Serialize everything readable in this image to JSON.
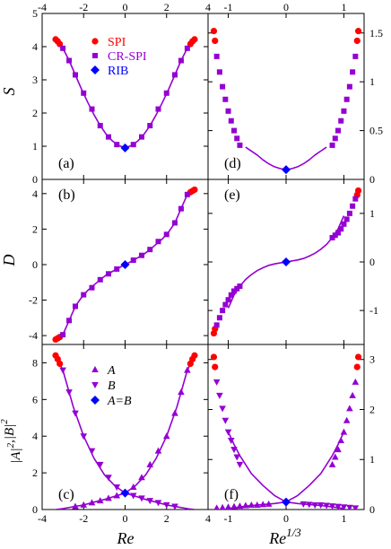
{
  "colors": {
    "spi": "#ff0000",
    "crspi": "#9400d3",
    "rib": "#0000ff",
    "line": "#9400d3",
    "axis": "#000000"
  },
  "legend_top": [
    {
      "key": "spi",
      "label": "SPI",
      "marker": "circle",
      "color": "#ff0000"
    },
    {
      "key": "crspi",
      "label": "CR-SPI",
      "marker": "square",
      "color": "#9400d3"
    },
    {
      "key": "rib",
      "label": "RIB",
      "marker": "diamond",
      "color": "#0000ff"
    }
  ],
  "legend_bottom": [
    {
      "key": "A",
      "label": "A",
      "marker": "triangle-up",
      "color": "#9400d3"
    },
    {
      "key": "B",
      "label": "B",
      "marker": "triangle-down",
      "color": "#9400d3"
    },
    {
      "key": "AB",
      "label": "A=B",
      "marker": "diamond",
      "color": "#0000ff"
    }
  ],
  "left_xlabel": "Re",
  "right_xlabel": "Re",
  "right_xlabel_sup": "1/3",
  "chart_data": [
    {
      "panel": "a",
      "type": "scatter",
      "label": "(a)",
      "ylabel": "S",
      "xlim": [
        -4,
        4
      ],
      "ylim": [
        0,
        5
      ],
      "xticks": [
        -4,
        -2,
        0,
        2,
        4
      ],
      "yticks": [
        0,
        1,
        2,
        3,
        4,
        5
      ],
      "curves": [
        {
          "name": "S",
          "x": [
            -3.0,
            -2.7,
            -2.4,
            -2.1,
            -1.8,
            -1.5,
            -1.2,
            -0.9,
            -0.6,
            -0.3,
            0.0,
            0.3,
            0.6,
            0.9,
            1.2,
            1.5,
            1.8,
            2.1,
            2.4,
            2.7,
            3.0,
            3.2,
            3.35
          ],
          "y": [
            3.95,
            3.58,
            3.15,
            2.72,
            2.32,
            1.95,
            1.62,
            1.35,
            1.15,
            1.02,
            0.95,
            1.02,
            1.15,
            1.35,
            1.62,
            1.95,
            2.32,
            2.72,
            3.15,
            3.58,
            3.95,
            4.1,
            4.22
          ]
        }
      ],
      "points": [
        {
          "kind": "spi",
          "x": [
            -3.35,
            -3.25,
            -3.15,
            3.15,
            3.25,
            3.35
          ],
          "y": [
            4.22,
            4.16,
            4.08,
            4.08,
            4.16,
            4.22
          ]
        },
        {
          "kind": "crspi",
          "x": [
            -3.0,
            -2.7,
            -2.4,
            -2.0,
            -1.6,
            -1.2,
            -0.8,
            -0.4,
            0.4,
            0.8,
            1.2,
            1.6,
            2.0,
            2.4,
            2.7,
            3.0
          ],
          "y": [
            3.95,
            3.58,
            3.15,
            2.6,
            2.12,
            1.62,
            1.28,
            1.05,
            1.05,
            1.28,
            1.62,
            2.12,
            2.6,
            3.15,
            3.58,
            3.95
          ]
        },
        {
          "kind": "rib",
          "x": [
            0.0
          ],
          "y": [
            0.95
          ]
        }
      ]
    },
    {
      "panel": "b",
      "type": "scatter",
      "label": "(b)",
      "ylabel": "D",
      "xlim": [
        -4,
        4
      ],
      "ylim": [
        -4.5,
        4.8
      ],
      "xticks": [
        -4,
        -2,
        0,
        2,
        4
      ],
      "yticks": [
        -4,
        -2,
        0,
        2,
        4
      ],
      "curves": [
        {
          "name": "D",
          "x": [
            -3.35,
            -3.0,
            -2.7,
            -2.4,
            -2.1,
            -1.8,
            -1.5,
            -1.2,
            -0.9,
            -0.6,
            -0.3,
            0.0,
            0.3,
            0.6,
            0.9,
            1.2,
            1.5,
            1.8,
            2.1,
            2.4,
            2.7,
            3.0,
            3.35
          ],
          "y": [
            -4.2,
            -3.95,
            -3.15,
            -2.35,
            -1.85,
            -1.45,
            -1.15,
            -0.85,
            -0.58,
            -0.38,
            -0.18,
            0.0,
            0.18,
            0.38,
            0.58,
            0.85,
            1.15,
            1.45,
            1.85,
            2.35,
            3.15,
            3.95,
            4.2
          ]
        }
      ],
      "points": [
        {
          "kind": "spi",
          "x": [
            -3.35,
            -3.25,
            -3.15,
            3.15,
            3.25,
            3.35
          ],
          "y": [
            -4.22,
            -4.15,
            -4.08,
            4.08,
            4.15,
            4.22
          ]
        },
        {
          "kind": "crspi",
          "x": [
            -3.0,
            -2.7,
            -2.4,
            -2.0,
            -1.6,
            -1.2,
            -0.8,
            -0.4,
            0.4,
            0.8,
            1.2,
            1.6,
            2.0,
            2.4,
            2.7,
            3.0
          ],
          "y": [
            -3.95,
            -3.15,
            -2.35,
            -1.7,
            -1.3,
            -0.85,
            -0.52,
            -0.25,
            0.25,
            0.52,
            0.85,
            1.3,
            1.7,
            2.35,
            3.15,
            3.95
          ]
        },
        {
          "kind": "rib",
          "x": [
            0.0
          ],
          "y": [
            0.0
          ]
        }
      ]
    },
    {
      "panel": "c",
      "type": "scatter",
      "label": "(c)",
      "ylabel": "|A|^2,|B|^2",
      "xlim": [
        -4,
        4
      ],
      "ylim": [
        0,
        9
      ],
      "xticks": [
        -4,
        -2,
        0,
        2,
        4
      ],
      "yticks": [
        0,
        2,
        4,
        6,
        8
      ],
      "curves": [
        {
          "name": "A",
          "x": [
            -3.35,
            -3.0,
            -2.5,
            -2.0,
            -1.5,
            -1.0,
            -0.5,
            0.0,
            0.5,
            1.0,
            1.5,
            2.0,
            2.5,
            3.0,
            3.35
          ],
          "y": [
            0.0,
            0.05,
            0.15,
            0.25,
            0.4,
            0.55,
            0.72,
            0.9,
            1.3,
            1.9,
            2.8,
            4.0,
            5.6,
            7.6,
            8.4
          ]
        },
        {
          "name": "B",
          "x": [
            -3.35,
            -3.0,
            -2.5,
            -2.0,
            -1.5,
            -1.0,
            -0.5,
            0.0,
            0.5,
            1.0,
            1.5,
            2.0,
            2.5,
            3.0,
            3.35
          ],
          "y": [
            8.4,
            7.6,
            5.6,
            4.0,
            2.8,
            1.9,
            1.3,
            0.9,
            0.72,
            0.55,
            0.4,
            0.25,
            0.15,
            0.05,
            0.0
          ]
        }
      ],
      "points": [
        {
          "kind": "spi",
          "x": [
            -3.35,
            -3.25,
            -3.15,
            3.15,
            3.25,
            3.35
          ],
          "y": [
            8.4,
            8.2,
            7.95,
            7.95,
            8.2,
            8.4
          ]
        },
        {
          "kind": "triangle-up",
          "x": [
            -2.4,
            -2.0,
            -1.6,
            -1.2,
            -0.8,
            -0.4,
            0.4,
            0.8,
            1.2,
            1.6,
            2.0,
            2.4,
            2.7,
            3.0
          ],
          "y": [
            0.17,
            0.25,
            0.37,
            0.48,
            0.62,
            0.76,
            1.22,
            1.75,
            2.45,
            3.2,
            4.0,
            5.25,
            6.4,
            7.6
          ]
        },
        {
          "kind": "triangle-down",
          "x": [
            -3.0,
            -2.7,
            -2.4,
            -2.0,
            -1.6,
            -1.2,
            -0.8,
            -0.4,
            0.4,
            0.8,
            1.2,
            1.6,
            2.0,
            2.4
          ],
          "y": [
            7.6,
            6.4,
            5.25,
            4.0,
            3.2,
            2.45,
            1.75,
            1.22,
            0.76,
            0.62,
            0.48,
            0.37,
            0.25,
            0.17
          ]
        },
        {
          "kind": "rib",
          "x": [
            0.0
          ],
          "y": [
            0.9
          ]
        }
      ]
    },
    {
      "panel": "d",
      "type": "scatter",
      "label": "(d)",
      "xlim": [
        -1.35,
        1.35
      ],
      "ylim": [
        0,
        1.7
      ],
      "xticks": [
        -1,
        0,
        1
      ],
      "yticks": [
        0,
        0.5,
        1,
        1.5
      ],
      "curves": [
        {
          "name": "S",
          "x": [
            -0.7,
            -0.6,
            -0.5,
            -0.4,
            -0.3,
            -0.2,
            -0.1,
            0.0,
            0.1,
            0.2,
            0.3,
            0.4,
            0.5,
            0.6,
            0.7
          ],
          "y": [
            0.33,
            0.29,
            0.25,
            0.2,
            0.16,
            0.13,
            0.11,
            0.1,
            0.11,
            0.13,
            0.16,
            0.2,
            0.25,
            0.29,
            0.33
          ]
        }
      ],
      "points": [
        {
          "kind": "spi",
          "x": [
            -1.25,
            -1.23,
            1.23,
            1.25
          ],
          "y": [
            1.52,
            1.42,
            1.42,
            1.52
          ]
        },
        {
          "kind": "crspi",
          "x": [
            -1.2,
            -1.15,
            -1.1,
            -1.05,
            -1.0,
            -0.95,
            -0.9,
            -0.85,
            -0.8,
            0.8,
            0.85,
            0.9,
            0.95,
            1.0,
            1.05,
            1.1,
            1.15,
            1.2
          ],
          "y": [
            1.26,
            1.1,
            0.95,
            0.82,
            0.7,
            0.6,
            0.5,
            0.42,
            0.35,
            0.35,
            0.42,
            0.5,
            0.6,
            0.7,
            0.82,
            0.95,
            1.1,
            1.26
          ]
        },
        {
          "kind": "rib",
          "x": [
            0.0
          ],
          "y": [
            0.1
          ]
        }
      ]
    },
    {
      "panel": "e",
      "type": "scatter",
      "label": "(e)",
      "xlim": [
        -1.35,
        1.35
      ],
      "ylim": [
        -1.7,
        1.7
      ],
      "xticks": [
        -1,
        0,
        1
      ],
      "yticks": [
        -1,
        0,
        1
      ],
      "curves": [
        {
          "name": "D",
          "x": [
            -1.0,
            -0.9,
            -0.8,
            -0.7,
            -0.6,
            -0.5,
            -0.4,
            -0.3,
            -0.2,
            -0.1,
            0.0,
            0.1,
            0.2,
            0.3,
            0.4,
            0.5,
            0.6,
            0.7,
            0.8,
            0.9,
            1.0
          ],
          "y": [
            -0.95,
            -0.68,
            -0.5,
            -0.36,
            -0.26,
            -0.18,
            -0.12,
            -0.07,
            -0.04,
            -0.02,
            0.0,
            0.02,
            0.04,
            0.07,
            0.12,
            0.18,
            0.26,
            0.36,
            0.5,
            0.68,
            0.95
          ]
        }
      ],
      "points": [
        {
          "kind": "spi",
          "x": [
            -1.25,
            -1.23,
            1.23,
            1.25
          ],
          "y": [
            -1.47,
            -1.38,
            1.38,
            1.47
          ]
        },
        {
          "kind": "crspi",
          "x": [
            -1.2,
            -1.15,
            -1.1,
            -1.05,
            -1.0,
            -0.95,
            -0.9,
            -0.85,
            -0.8,
            0.8,
            0.85,
            0.9,
            0.95,
            1.0,
            1.05,
            1.1,
            1.15,
            1.2
          ],
          "y": [
            -1.3,
            -1.15,
            -1.0,
            -0.88,
            -0.78,
            -0.68,
            -0.6,
            -0.55,
            -0.5,
            0.5,
            0.55,
            0.6,
            0.68,
            0.78,
            0.88,
            1.0,
            1.15,
            1.3
          ]
        },
        {
          "kind": "rib",
          "x": [
            0.0
          ],
          "y": [
            0.0
          ]
        }
      ]
    },
    {
      "panel": "f",
      "type": "scatter",
      "label": "(f)",
      "xlim": [
        -1.35,
        1.35
      ],
      "ylim": [
        0,
        3.3
      ],
      "xticks": [
        -1,
        0,
        1
      ],
      "yticks": [
        0,
        1,
        2,
        3
      ],
      "curves": [
        {
          "name": "A",
          "x": [
            -1.0,
            -0.8,
            -0.6,
            -0.4,
            -0.2,
            0.0,
            0.2,
            0.4,
            0.6,
            0.8,
            0.9,
            1.0
          ],
          "y": [
            0.02,
            0.05,
            0.08,
            0.1,
            0.12,
            0.15,
            0.28,
            0.48,
            0.72,
            1.08,
            1.3,
            1.55
          ]
        },
        {
          "name": "B",
          "x": [
            -1.0,
            -0.9,
            -0.8,
            -0.6,
            -0.4,
            -0.2,
            0.0,
            0.2,
            0.4,
            0.6,
            0.8,
            1.0
          ],
          "y": [
            1.55,
            1.3,
            1.08,
            0.72,
            0.48,
            0.28,
            0.15,
            0.12,
            0.1,
            0.08,
            0.05,
            0.02
          ]
        }
      ],
      "points": [
        {
          "kind": "spi",
          "x": [
            -1.25,
            -1.23,
            1.23,
            1.25
          ],
          "y": [
            3.05,
            2.85,
            2.85,
            3.05
          ]
        },
        {
          "kind": "triangle-up",
          "x": [
            -1.2,
            -1.1,
            -1.0,
            -0.9,
            -0.8,
            -0.7,
            -0.6,
            -0.5,
            -0.4,
            -0.3,
            0.8,
            0.85,
            0.9,
            0.95,
            1.0,
            1.05,
            1.1,
            1.15,
            1.2
          ],
          "y": [
            0.03,
            0.04,
            0.05,
            0.06,
            0.07,
            0.08,
            0.09,
            0.09,
            0.1,
            0.11,
            0.9,
            1.05,
            1.2,
            1.38,
            1.55,
            1.78,
            2.02,
            2.28,
            2.55
          ]
        },
        {
          "kind": "triangle-down",
          "x": [
            -1.2,
            -1.15,
            -1.1,
            -1.05,
            -1.0,
            -0.95,
            -0.9,
            -0.85,
            -0.8,
            0.3,
            0.4,
            0.5,
            0.6,
            0.7,
            0.8,
            0.9,
            1.0,
            1.1,
            1.2
          ],
          "y": [
            2.55,
            2.28,
            2.02,
            1.78,
            1.55,
            1.38,
            1.2,
            1.05,
            0.9,
            0.11,
            0.1,
            0.09,
            0.09,
            0.08,
            0.07,
            0.06,
            0.05,
            0.04,
            0.03
          ]
        },
        {
          "kind": "rib",
          "x": [
            0.0
          ],
          "y": [
            0.15
          ]
        }
      ]
    }
  ]
}
